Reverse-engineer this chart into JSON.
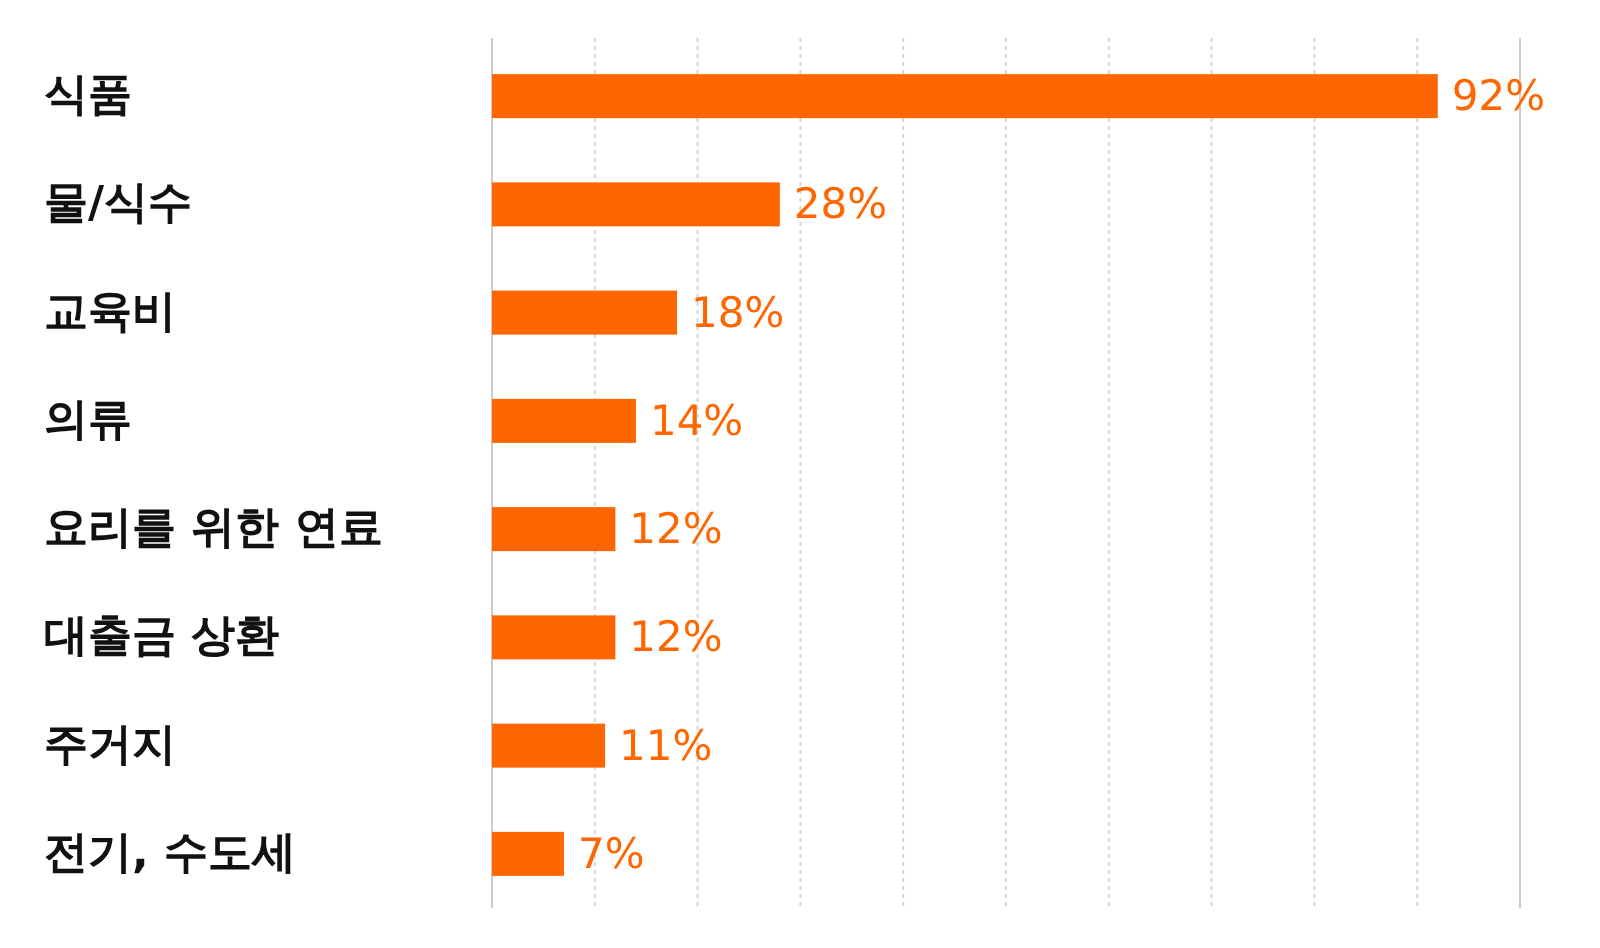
{
  "chart_data": {
    "type": "bar",
    "orientation": "horizontal",
    "categories": [
      "식품",
      "물/식수",
      "교육비",
      "의류",
      "요리를 위한 연료",
      "대출금 상환",
      "주거지",
      "전기, 수도세"
    ],
    "values": [
      92,
      28,
      18,
      14,
      12,
      12,
      11,
      7
    ],
    "color": "#ff6600",
    "value_labels": [
      "92%",
      "28%",
      "18%",
      "14%",
      "12%",
      "12%",
      "11%",
      "7%"
    ],
    "xlim": [
      0,
      100
    ],
    "xticks": [
      {
        "value": 0,
        "label": null
      },
      {
        "value": 10,
        "label": null
      },
      {
        "value": 20,
        "label": null
      },
      {
        "value": 30,
        "label": null
      },
      {
        "value": 40,
        "label": null
      },
      {
        "value": 50,
        "label": null
      },
      {
        "value": 60,
        "label": null
      },
      {
        "value": 70,
        "label": null
      },
      {
        "value": 80,
        "label": null
      },
      {
        "value": 90,
        "label": null
      },
      {
        "value": 100,
        "label": null
      }
    ],
    "grid": "x",
    "tick_labels": "y"
  }
}
